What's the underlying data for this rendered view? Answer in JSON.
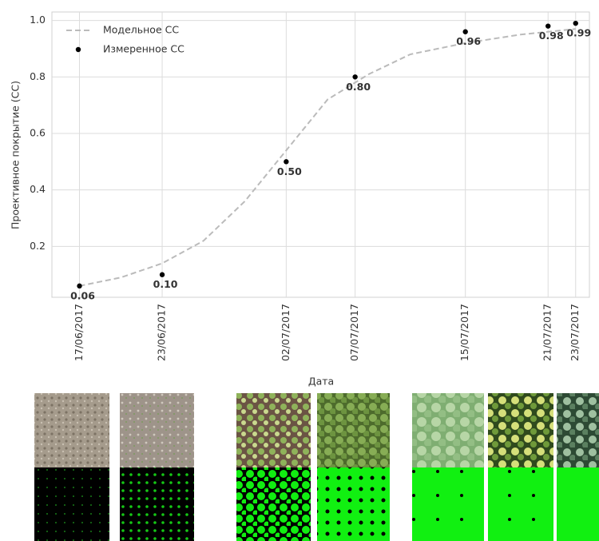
{
  "chart_data": {
    "type": "line",
    "y_label": "Проективное покрытие (СС)",
    "x_label": "Дата",
    "xlim": [
      "15/06/2017",
      "24/07/2017"
    ],
    "xticks": [
      "17/06/2017",
      "23/06/2017",
      "02/07/2017",
      "07/07/2017",
      "15/07/2017",
      "21/07/2017",
      "23/07/2017"
    ],
    "ylim": [
      0.02,
      1.03
    ],
    "yticks": [
      0.2,
      0.4,
      0.6,
      0.8,
      {
        "value": 1,
        "label": "1.0"
      }
    ],
    "grid": true,
    "legend": "upper left",
    "series": [
      {
        "name": "Модельное СС",
        "type": "line",
        "style": "dashed",
        "color": "#bbbbbb",
        "x": [
          "17/06/2017",
          "20/06/2017",
          "23/06/2017",
          "26/06/2017",
          "29/06/2017",
          "02/07/2017",
          "05/07/2017",
          "08/07/2017",
          "11/07/2017",
          "15/07/2017",
          "19/07/2017",
          "23/07/2017"
        ],
        "values": [
          0.06,
          0.09,
          0.14,
          0.22,
          0.36,
          0.54,
          0.72,
          0.81,
          0.88,
          0.92,
          0.95,
          0.97
        ]
      },
      {
        "name": "Измеренное СС",
        "type": "scatter",
        "color": "#000000",
        "x": [
          "17/06/2017",
          "23/06/2017",
          "02/07/2017",
          "07/07/2017",
          "15/07/2017",
          "21/07/2017",
          "23/07/2017"
        ],
        "values": [
          0.06,
          0.1,
          0.5,
          0.8,
          0.96,
          0.98,
          0.99
        ],
        "value_labels": [
          "0.06",
          "0.10",
          "0.50",
          "0.80",
          "0.96",
          "0.98",
          "0.99"
        ]
      }
    ]
  }
}
